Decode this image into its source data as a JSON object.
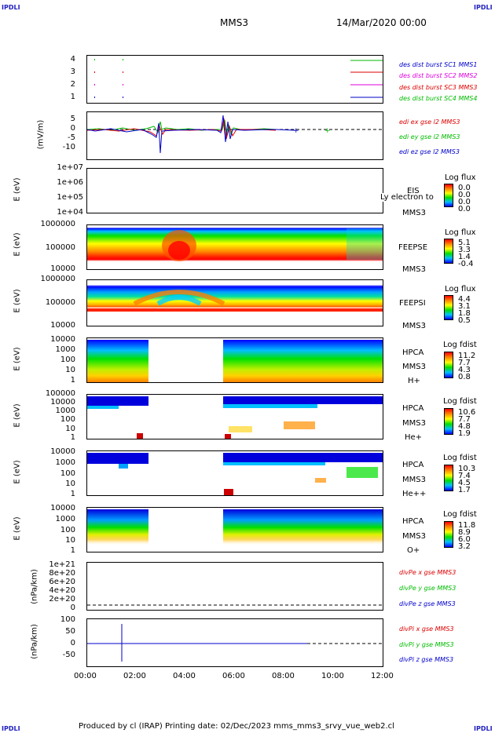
{
  "header": {
    "corner_text": "IPDLI",
    "mission": "MMS3",
    "date": "14/Mar/2020 00:00"
  },
  "footer": {
    "text": "Produced by cl (IRAP)   Printing date: 02/Dec/2023   mms_mms3_srvy_vue_web2.cl"
  },
  "colors": {
    "sc1": "#0000cc",
    "sc2": "#dd00dd",
    "sc3": "#dd0000",
    "sc4": "#00bb00"
  },
  "chart_data": [
    {
      "type": "line",
      "id": "burst",
      "yticks": [
        "4",
        "3",
        "2",
        "1"
      ],
      "legend": [
        "des dist burst SC1 MMS1",
        "des dist burst SC2 MMS2",
        "des dist burst SC3 MMS3",
        "des dist burst SC4 MMS4"
      ]
    },
    {
      "type": "line",
      "id": "edi",
      "ylabel": "(mV/m)",
      "yticks": [
        "5",
        "0",
        "-5",
        "-10"
      ],
      "ylim": [
        -14,
        8
      ],
      "legend": [
        "edi ex gse l2 MMS3",
        "edi ey gse l2 MMS3",
        "edi ez gse l2 MMS3"
      ]
    },
    {
      "type": "heatmap",
      "id": "eis",
      "ylabel": "E (eV)",
      "yticks": [
        "1e+07",
        "1e+06",
        "1e+05",
        "1e+04"
      ],
      "labels": [
        "EIS",
        "Ly electron to",
        "MMS3"
      ],
      "colorbar": {
        "title": "Log flux",
        "ticks": [
          "0.0",
          "0.0",
          "0.0",
          "0.0"
        ]
      }
    },
    {
      "type": "heatmap",
      "id": "feepse",
      "ylabel": "E (eV)",
      "yticks": [
        "1000000",
        "100000",
        "10000"
      ],
      "labels": [
        "FEEPSE",
        "MMS3"
      ],
      "colorbar": {
        "title": "Log flux",
        "ticks": [
          "5.1",
          "3.3",
          "1.4",
          "-0.4"
        ]
      }
    },
    {
      "type": "heatmap",
      "id": "feepsi",
      "ylabel": "E (eV)",
      "yticks": [
        "1000000",
        "100000",
        "10000"
      ],
      "labels": [
        "FEEPSI",
        "MMS3"
      ],
      "colorbar": {
        "title": "Log flux",
        "ticks": [
          "4.4",
          "3.1",
          "1.8",
          "0.5"
        ]
      }
    },
    {
      "type": "heatmap",
      "id": "hpca_h",
      "ylabel": "E (eV)",
      "yticks": [
        "10000",
        "1000",
        "100",
        "10",
        "1"
      ],
      "labels": [
        "HPCA",
        "MMS3",
        "H+"
      ],
      "colorbar": {
        "title": "Log fdist",
        "ticks": [
          "11.2",
          "7.7",
          "4.3",
          "0.8"
        ]
      }
    },
    {
      "type": "heatmap",
      "id": "hpca_he",
      "ylabel": "E (eV)",
      "yticks": [
        "100000",
        "10000",
        "1000",
        "100",
        "10",
        "1"
      ],
      "labels": [
        "HPCA",
        "MMS3",
        "He+"
      ],
      "colorbar": {
        "title": "Log fdist",
        "ticks": [
          "10.6",
          "7.7",
          "4.8",
          "1.9"
        ]
      }
    },
    {
      "type": "heatmap",
      "id": "hpca_he2",
      "ylabel": "E (eV)",
      "yticks": [
        "10000",
        "1000",
        "100",
        "10",
        "1"
      ],
      "labels": [
        "HPCA",
        "MMS3",
        "He++"
      ],
      "colorbar": {
        "title": "Log fdist",
        "ticks": [
          "10.3",
          "7.4",
          "4.5",
          "1.7"
        ]
      }
    },
    {
      "type": "heatmap",
      "id": "hpca_o",
      "ylabel": "E (eV)",
      "yticks": [
        "10000",
        "1000",
        "100",
        "10",
        "1"
      ],
      "labels": [
        "HPCA",
        "MMS3",
        "O+"
      ],
      "colorbar": {
        "title": "Log fdist",
        "ticks": [
          "11.8",
          "8.9",
          "6.0",
          "3.2"
        ]
      }
    },
    {
      "type": "line",
      "id": "divpe",
      "ylabel": "(nPa/km)",
      "yticks": [
        "1e+21",
        "8e+20",
        "6e+20",
        "4e+20",
        "2e+20",
        "0"
      ],
      "legend": [
        "divPe x gse MMS3",
        "divPe y gse MMS3",
        "divPe z gse MMS3"
      ]
    },
    {
      "type": "line",
      "id": "divpi",
      "ylabel": "(nPa/km)",
      "yticks": [
        "100",
        "50",
        "0",
        "-50"
      ],
      "ylim": [
        -75,
        110
      ],
      "legend": [
        "divPi x gse MMS3",
        "divPi y gse MMS3",
        "divPi z gse MMS3"
      ]
    }
  ],
  "xaxis": {
    "ticks": [
      "00:00",
      "02:00",
      "04:00",
      "06:00",
      "08:00",
      "10:00",
      "12:00"
    ],
    "range_hours": [
      0,
      12
    ]
  },
  "data_gaps_hours": [
    [
      2.45,
      5.45
    ]
  ]
}
